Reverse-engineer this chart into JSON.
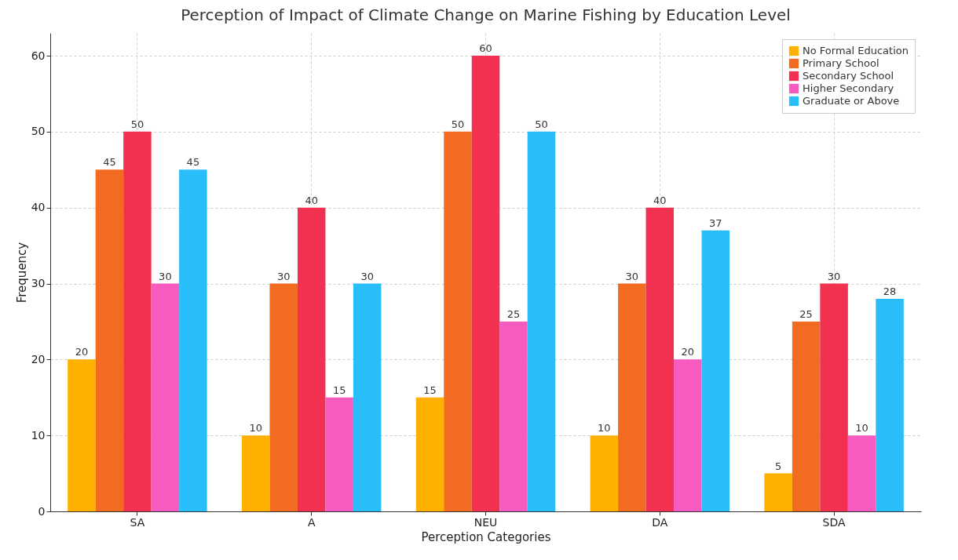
{
  "chart_data": {
    "type": "bar",
    "title": "Perception of Impact of Climate Change on Marine Fishing by Education Level",
    "xlabel": "Perception Categories",
    "ylabel": "Frequency",
    "categories": [
      "SA",
      "A",
      "NEU",
      "DA",
      "SDA"
    ],
    "series": [
      {
        "name": "No Formal Education",
        "color": "#ffb000",
        "values": [
          20,
          10,
          15,
          10,
          5
        ]
      },
      {
        "name": "Primary School",
        "color": "#f26b21",
        "values": [
          45,
          30,
          50,
          30,
          25
        ]
      },
      {
        "name": "Secondary School",
        "color": "#f2304f",
        "values": [
          50,
          40,
          60,
          40,
          30
        ]
      },
      {
        "name": "Higher Secondary",
        "color": "#f75bc0",
        "values": [
          30,
          15,
          25,
          20,
          10
        ]
      },
      {
        "name": "Graduate or Above",
        "color": "#29bdf9",
        "values": [
          45,
          30,
          50,
          37,
          28
        ]
      }
    ],
    "ylim": [
      0,
      63
    ],
    "yticks": [
      0,
      10,
      20,
      30,
      40,
      50,
      60
    ],
    "grid": true,
    "legend": "top right",
    "data_labels": true
  }
}
